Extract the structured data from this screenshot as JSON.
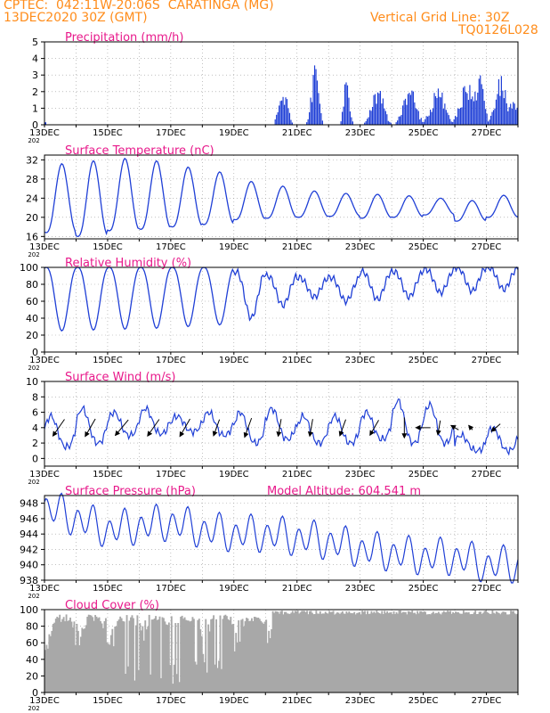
{
  "header": {
    "line1": "CPTEC:  042:11W-20:06S  CARATINGA (MG)",
    "line2": "13DEC2020 30Z (GMT)",
    "grid_note": "Vertical Grid Line: 30Z",
    "code": "TQ0126L028"
  },
  "colors": {
    "header": "#ff8c1a",
    "panel_title": "#e8198b",
    "line": "#1f3fd6",
    "bar": "#1f3fd6",
    "cloud": "#a8a8a8",
    "grid": "#9a9a9a",
    "arrow": "#000000"
  },
  "x_axis": {
    "days": 15,
    "tick_labels": [
      "13DEC",
      "15DEC",
      "17DEC",
      "19DEC",
      "21DEC",
      "23DEC",
      "25DEC",
      "27DEC"
    ],
    "tick_day_offsets": [
      0,
      2,
      4,
      6,
      8,
      10,
      12,
      14
    ],
    "year_stub": "202"
  },
  "chart_data": [
    {
      "id": "precip",
      "type": "bar",
      "title": "Precipitation  (mm/h)",
      "ylim": [
        0,
        5
      ],
      "yticks": [
        0,
        1,
        2,
        3,
        4,
        5
      ],
      "rain_events": [
        {
          "day": 7.55,
          "peak": 2.6,
          "width": 0.18
        },
        {
          "day": 8.55,
          "peak": 3.6,
          "width": 0.16
        },
        {
          "day": 9.55,
          "peak": 3.3,
          "width": 0.12
        },
        {
          "day": 10.55,
          "peak": 2.6,
          "width": 0.25
        },
        {
          "day": 11.55,
          "peak": 2.4,
          "width": 0.28
        },
        {
          "day": 12.45,
          "peak": 2.4,
          "width": 0.3
        },
        {
          "day": 13.35,
          "peak": 2.8,
          "width": 0.3
        },
        {
          "day": 13.75,
          "peak": 3.4,
          "width": 0.2
        },
        {
          "day": 14.45,
          "peak": 3.1,
          "width": 0.25
        },
        {
          "day": 14.85,
          "peak": 2.3,
          "width": 0.15
        }
      ]
    },
    {
      "id": "temp",
      "type": "line",
      "title": "Surface Temperature (nC)",
      "ylim": [
        15.5,
        33
      ],
      "yticks": [
        16,
        20,
        24,
        28,
        32
      ],
      "daily_max": [
        31.2,
        31.8,
        32.3,
        31.8,
        30.5,
        29.5,
        27.5,
        26.5,
        25.5,
        25,
        24.8,
        24.5,
        24,
        23.5,
        24.6
      ],
      "daily_min": [
        16.8,
        16.0,
        17.2,
        17.5,
        18.0,
        18.5,
        19.5,
        19.8,
        20.0,
        20.2,
        19.8,
        20.0,
        20.5,
        19.2,
        20.0
      ]
    },
    {
      "id": "rh",
      "type": "line",
      "title": "Relative Humidity (%)",
      "ylim": [
        0,
        100
      ],
      "yticks": [
        0,
        20,
        40,
        60,
        80,
        100
      ],
      "daily_min": [
        25,
        26,
        27,
        28,
        30,
        32,
        40,
        55,
        65,
        60,
        62,
        65,
        70,
        72,
        74
      ],
      "daily_max": [
        100,
        100,
        100,
        100,
        100,
        100,
        95,
        90,
        88,
        88,
        95,
        95,
        98,
        100,
        100
      ]
    },
    {
      "id": "wind",
      "type": "line",
      "title": "Surface Wind  (m/s)",
      "ylim": [
        -1,
        10
      ],
      "yticks": [
        0,
        2,
        4,
        6,
        8,
        10
      ],
      "daily_low": [
        1.5,
        2.0,
        3.0,
        3.2,
        3.5,
        3.0,
        2.0,
        2.5,
        2.0,
        2.0,
        2.5,
        2.0,
        2.0,
        1.0,
        1.0
      ],
      "daily_high": [
        5.5,
        6.5,
        6.0,
        6.5,
        5.5,
        6.0,
        6.0,
        6.5,
        5.5,
        5.5,
        6.0,
        7.5,
        7.0,
        3.0,
        4.0
      ],
      "barbs": [
        {
          "day": 0.45,
          "speed": 3.5,
          "dir": 215
        },
        {
          "day": 1.45,
          "speed": 3.5,
          "dir": 210
        },
        {
          "day": 2.45,
          "speed": 3.5,
          "dir": 220
        },
        {
          "day": 3.45,
          "speed": 3.5,
          "dir": 215
        },
        {
          "day": 4.45,
          "speed": 3.5,
          "dir": 210
        },
        {
          "day": 5.45,
          "speed": 3.0,
          "dir": 200
        },
        {
          "day": 6.45,
          "speed": 3.5,
          "dir": 200
        },
        {
          "day": 7.45,
          "speed": 3.0,
          "dir": 190
        },
        {
          "day": 8.45,
          "speed": 3.0,
          "dir": 190
        },
        {
          "day": 9.45,
          "speed": 3.0,
          "dir": 200
        },
        {
          "day": 10.45,
          "speed": 3.0,
          "dir": 210
        },
        {
          "day": 11.4,
          "speed": 3.5,
          "dir": 180
        },
        {
          "day": 12.0,
          "speed": 2.5,
          "dir": 270
        },
        {
          "day": 12.5,
          "speed": 2.5,
          "dir": 190
        },
        {
          "day": 13.0,
          "speed": 1.5,
          "dir": 300
        },
        {
          "day": 13.5,
          "speed": 1.0,
          "dir": 320
        },
        {
          "day": 14.3,
          "speed": 2.0,
          "dir": 230
        }
      ]
    },
    {
      "id": "pres",
      "type": "line",
      "title": "Surface Pressure (hPa)",
      "note": "Model Altitude: 604.541  m",
      "ylim": [
        938,
        949
      ],
      "yticks": [
        938,
        940,
        942,
        944,
        946,
        948
      ],
      "daily_mean": [
        947.5,
        946.0,
        944.5,
        945.0,
        945.5,
        944.5,
        944.0,
        944.0,
        943.5,
        943.0,
        942.0,
        941.5,
        941.0,
        941.0,
        940.0
      ],
      "amplitude": 2.5
    },
    {
      "id": "cloud",
      "type": "area",
      "title": "Cloud Cover (%)",
      "ylim": [
        0,
        100
      ],
      "yticks": [
        0,
        20,
        40,
        60,
        80,
        100
      ]
    }
  ]
}
